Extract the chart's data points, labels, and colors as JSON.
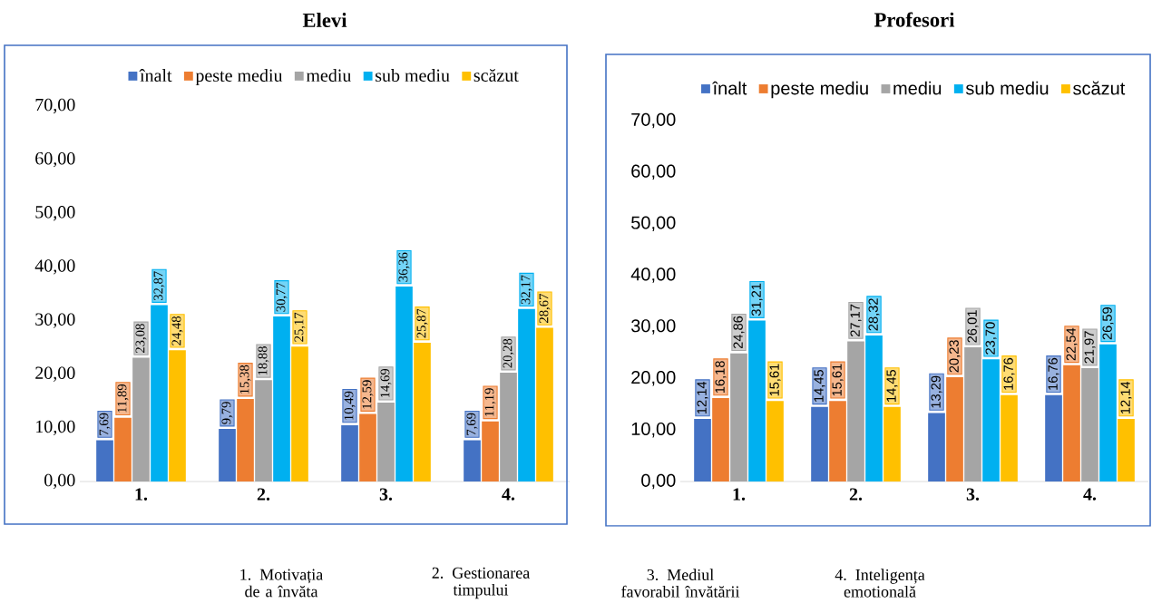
{
  "chart_data": [
    {
      "type": "bar",
      "title": "Elevi",
      "categories": [
        "1.",
        "2.",
        "3.",
        "4."
      ],
      "series": [
        {
          "name": "înalt",
          "color": "#4472c4",
          "values": [
            7.69,
            9.79,
            10.49,
            7.69
          ],
          "value_labels": [
            "7,69",
            "9,79",
            "10,49",
            "7,69"
          ]
        },
        {
          "name": "peste mediu",
          "color": "#ed7d31",
          "values": [
            11.89,
            15.38,
            12.59,
            11.19
          ],
          "value_labels": [
            "11,89",
            "15,38",
            "12,59",
            "11,19"
          ]
        },
        {
          "name": "mediu",
          "color": "#a5a5a5",
          "values": [
            23.08,
            18.88,
            14.69,
            20.28
          ],
          "value_labels": [
            "23,08",
            "18,88",
            "14,69",
            "20,28"
          ]
        },
        {
          "name": "sub mediu",
          "color": "#00b0f0",
          "values": [
            32.87,
            30.77,
            36.36,
            32.17
          ],
          "value_labels": [
            "32,87",
            "30,77",
            "36,36",
            "32,17"
          ]
        },
        {
          "name": "scăzut",
          "color": "#ffc000",
          "values": [
            24.48,
            25.17,
            25.87,
            28.67
          ],
          "value_labels": [
            "24,48",
            "25,17",
            "25,87",
            "28,67"
          ]
        }
      ],
      "ylim": [
        0,
        70
      ],
      "yticks": [
        {
          "value": 0,
          "label": "0,00"
        },
        {
          "value": 10,
          "label": "10,00"
        },
        {
          "value": 20,
          "label": "20,00"
        },
        {
          "value": 30,
          "label": "30,00"
        },
        {
          "value": 40,
          "label": "40,00"
        },
        {
          "value": 50,
          "label": "50,00"
        },
        {
          "value": 60,
          "label": "60,00"
        },
        {
          "value": 70,
          "label": "70,00"
        }
      ],
      "legend": "top",
      "annotations": [
        "1. Motivația de a învăta",
        "2. Gestionarea timpului",
        "3. Mediul favorabil învătării",
        "4. Inteligența emotională"
      ]
    },
    {
      "type": "bar",
      "title": "Profesori",
      "categories": [
        "1.",
        "2.",
        "3.",
        "4."
      ],
      "series": [
        {
          "name": "înalt",
          "color": "#4472c4",
          "values": [
            12.14,
            14.45,
            13.29,
            16.76
          ],
          "value_labels": [
            "12,14",
            "14,45",
            "13,29",
            "16,76"
          ]
        },
        {
          "name": "peste mediu",
          "color": "#ed7d31",
          "values": [
            16.18,
            15.61,
            20.23,
            22.54
          ],
          "value_labels": [
            "16,18",
            "15,61",
            "20,23",
            "22,54"
          ]
        },
        {
          "name": "mediu",
          "color": "#a5a5a5",
          "values": [
            24.86,
            27.17,
            26.01,
            21.97
          ],
          "value_labels": [
            "24,86",
            "27,17",
            "26,01",
            "21,97"
          ]
        },
        {
          "name": "sub mediu",
          "color": "#00b0f0",
          "values": [
            31.21,
            28.32,
            23.7,
            26.59
          ],
          "value_labels": [
            "31,21",
            "28,32",
            "23,70",
            "26,59"
          ]
        },
        {
          "name": "scăzut",
          "color": "#ffc000",
          "values": [
            15.61,
            14.45,
            16.76,
            12.14
          ],
          "value_labels": [
            "15,61",
            "14,45",
            "16,76",
            "12,14"
          ]
        }
      ],
      "ylim": [
        0,
        70
      ],
      "yticks": [
        {
          "value": 0,
          "label": "0,00"
        },
        {
          "value": 10,
          "label": "10,00"
        },
        {
          "value": 20,
          "label": "20,00"
        },
        {
          "value": 30,
          "label": "30,00"
        },
        {
          "value": 40,
          "label": "40,00"
        },
        {
          "value": 50,
          "label": "50,00"
        },
        {
          "value": 60,
          "label": "60,00"
        },
        {
          "value": 70,
          "label": "70,00"
        }
      ],
      "legend": "top"
    }
  ]
}
